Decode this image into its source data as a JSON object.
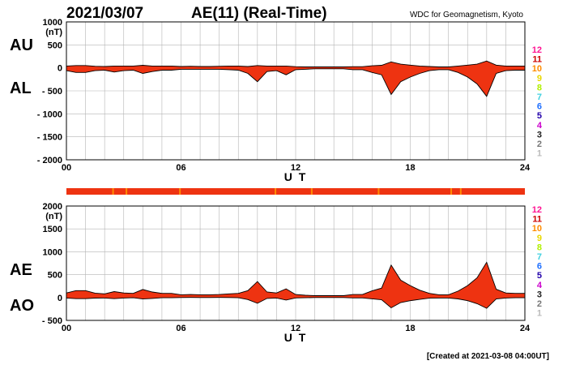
{
  "header": {
    "date": "2021/03/07",
    "title": "AE(11) (Real-Time)",
    "source": "WDC for Geomagnetism, Kyoto"
  },
  "footer": {
    "created": "[Created at 2021-03-08 04:00UT]"
  },
  "station_counts": {
    "labels": [
      "12",
      "11",
      "10",
      "9",
      "8",
      "7",
      "6",
      "5",
      "4",
      "3",
      "2",
      "1"
    ],
    "colors": [
      "#ff1493",
      "#cc0000",
      "#ff8c00",
      "#e8d800",
      "#b0f000",
      "#40d0e0",
      "#1e6fff",
      "#2200aa",
      "#cc00cc",
      "#222222",
      "#777777",
      "#bbbbbb"
    ]
  },
  "chart_data": [
    {
      "type": "area",
      "panel": "upper",
      "series": [
        {
          "name": "AU",
          "label": "AU",
          "x": [
            0,
            0.5,
            1,
            1.5,
            2,
            2.5,
            3,
            3.5,
            4,
            4.5,
            5,
            5.5,
            6,
            6.5,
            7,
            7.5,
            8,
            8.5,
            9,
            9.5,
            10,
            10.5,
            11,
            11.5,
            12,
            12.5,
            13,
            13.5,
            14,
            14.5,
            15,
            15.5,
            16,
            16.5,
            17,
            17.5,
            18,
            18.5,
            19,
            19.5,
            20,
            20.5,
            21,
            21.5,
            22,
            22.5,
            23,
            23.5,
            24
          ],
          "values": [
            40,
            50,
            50,
            35,
            30,
            40,
            40,
            40,
            55,
            40,
            40,
            40,
            30,
            35,
            30,
            30,
            35,
            40,
            40,
            30,
            50,
            40,
            40,
            40,
            25,
            20,
            20,
            20,
            20,
            20,
            25,
            25,
            45,
            55,
            130,
            80,
            60,
            40,
            30,
            20,
            20,
            40,
            60,
            80,
            150,
            60,
            40,
            40,
            40
          ]
        },
        {
          "name": "AL",
          "label": "AL",
          "x": [
            0,
            0.5,
            1,
            1.5,
            2,
            2.5,
            3,
            3.5,
            4,
            4.5,
            5,
            5.5,
            6,
            6.5,
            7,
            7.5,
            8,
            8.5,
            9,
            9.5,
            10,
            10.5,
            11,
            11.5,
            12,
            12.5,
            13,
            13.5,
            14,
            14.5,
            15,
            15.5,
            16,
            16.5,
            17,
            17.5,
            18,
            18.5,
            19,
            19.5,
            20,
            20.5,
            21,
            21.5,
            22,
            22.5,
            23,
            23.5,
            24
          ],
          "values": [
            -60,
            -100,
            -100,
            -60,
            -50,
            -90,
            -60,
            -50,
            -120,
            -80,
            -50,
            -50,
            -30,
            -30,
            -30,
            -30,
            -30,
            -40,
            -50,
            -120,
            -300,
            -80,
            -60,
            -150,
            -40,
            -30,
            -20,
            -20,
            -20,
            -20,
            -40,
            -40,
            -100,
            -150,
            -580,
            -300,
            -200,
            -120,
            -60,
            -40,
            -40,
            -100,
            -200,
            -350,
            -620,
            -120,
            -60,
            -50,
            -50
          ]
        }
      ],
      "xlabel": "U T",
      "ylabel_unit": "(nT)",
      "ylim": [
        -2000,
        1000
      ],
      "yticks": [
        1000,
        500,
        0,
        -500,
        -1000,
        -1500,
        -2000
      ],
      "ytick_labels": [
        "1000",
        "500",
        "0",
        "- 500",
        "- 1000",
        "- 1500",
        "- 2000"
      ],
      "xlim": [
        0,
        24
      ],
      "xticks": [
        0,
        6,
        12,
        18,
        24
      ],
      "xtick_labels": [
        "00",
        "06",
        "12",
        "18",
        "24"
      ],
      "grid": true
    },
    {
      "type": "area",
      "panel": "lower",
      "series": [
        {
          "name": "AE",
          "label": "AE",
          "x": [
            0,
            0.5,
            1,
            1.5,
            2,
            2.5,
            3,
            3.5,
            4,
            4.5,
            5,
            5.5,
            6,
            6.5,
            7,
            7.5,
            8,
            8.5,
            9,
            9.5,
            10,
            10.5,
            11,
            11.5,
            12,
            12.5,
            13,
            13.5,
            14,
            14.5,
            15,
            15.5,
            16,
            16.5,
            17,
            17.5,
            18,
            18.5,
            19,
            19.5,
            20,
            20.5,
            21,
            21.5,
            22,
            22.5,
            23,
            23.5,
            24
          ],
          "values": [
            100,
            150,
            150,
            95,
            80,
            130,
            100,
            90,
            175,
            120,
            90,
            90,
            60,
            65,
            60,
            60,
            65,
            80,
            90,
            150,
            350,
            120,
            100,
            190,
            65,
            50,
            40,
            40,
            40,
            40,
            65,
            65,
            145,
            205,
            710,
            380,
            260,
            160,
            90,
            60,
            60,
            140,
            260,
            430,
            770,
            180,
            100,
            90,
            90
          ]
        },
        {
          "name": "AO",
          "label": "AO",
          "x": [
            0,
            0.5,
            1,
            1.5,
            2,
            2.5,
            3,
            3.5,
            4,
            4.5,
            5,
            5.5,
            6,
            6.5,
            7,
            7.5,
            8,
            8.5,
            9,
            9.5,
            10,
            10.5,
            11,
            11.5,
            12,
            12.5,
            13,
            13.5,
            14,
            14.5,
            15,
            15.5,
            16,
            16.5,
            17,
            17.5,
            18,
            18.5,
            19,
            19.5,
            20,
            20.5,
            21,
            21.5,
            22,
            22.5,
            23,
            23.5,
            24
          ],
          "values": [
            -10,
            -25,
            -25,
            -12,
            -10,
            -25,
            -10,
            -5,
            -32,
            -20,
            -5,
            -5,
            0,
            2,
            0,
            0,
            2,
            0,
            -5,
            -45,
            -125,
            -20,
            -10,
            -55,
            -8,
            -5,
            0,
            0,
            0,
            0,
            -8,
            -8,
            -28,
            -48,
            -225,
            -110,
            -70,
            -40,
            -15,
            -10,
            -10,
            -30,
            -70,
            -135,
            -235,
            -30,
            -10,
            -5,
            -5
          ]
        }
      ],
      "xlabel": "U T",
      "ylabel_unit": "(nT)",
      "ylim": [
        -500,
        2000
      ],
      "yticks": [
        2000,
        1500,
        1000,
        500,
        0,
        -500
      ],
      "ytick_labels": [
        "2000",
        "1500",
        "1000",
        "500",
        "0",
        "- 500"
      ],
      "xlim": [
        0,
        24
      ],
      "xticks": [
        0,
        6,
        12,
        18,
        24
      ],
      "xtick_labels": [
        "00",
        "06",
        "12",
        "18",
        "24"
      ],
      "grid": true
    }
  ]
}
